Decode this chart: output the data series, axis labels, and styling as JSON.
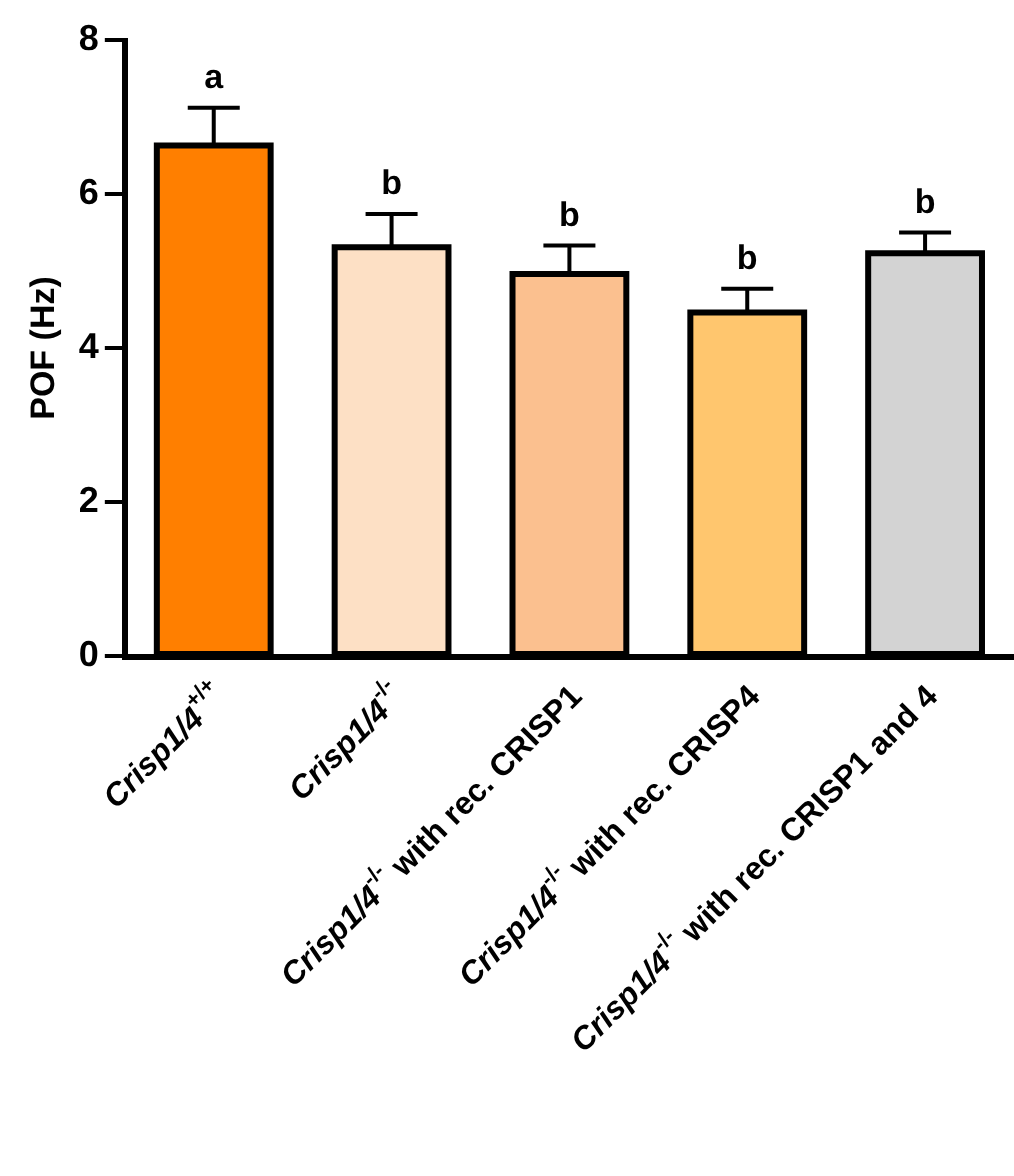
{
  "chart_data": {
    "type": "bar",
    "ylabel": "POF (Hz)",
    "categories": [
      "Crisp1/4$^{+/+}$",
      "Crisp1/4$^{-/-}$",
      "Crisp1/4$^{-/-}$ with rec. CRISP1",
      "Crisp1/4$^{-/-}$ with rec. CRISP4",
      "Crisp1/4$^{-/-}$ with rec. CRISP1 and 4"
    ],
    "values": [
      6.63,
      5.31,
      4.96,
      4.46,
      5.23
    ],
    "colors": [
      "#ff7f00",
      "#fde0c5",
      "#fbc08f",
      "#ffc66e",
      "#d3d3d3"
    ],
    "errors": [
      [
        6.63,
        7.12
      ],
      [
        5.31,
        5.74
      ],
      [
        4.96,
        5.33
      ],
      [
        4.46,
        4.77
      ],
      [
        5.23,
        5.5
      ]
    ],
    "annotations": [
      {
        "text": "a",
        "x": "Crisp1/4$^{+/+}$",
        "y": 7.12
      },
      {
        "text": "b",
        "x": "Crisp1/4$^{-/-}$",
        "y": 5.74
      },
      {
        "text": "b",
        "x": "Crisp1/4$^{-/-}$ with rec. CRISP1",
        "y": 5.33
      },
      {
        "text": "b",
        "x": "Crisp1/4$^{-/-}$ with rec. CRISP4",
        "y": 4.77
      },
      {
        "text": "b",
        "x": "Crisp1/4$^{-/-}$ with rec. CRISP1 and 4",
        "y": 5.5
      }
    ],
    "ylim": [
      0,
      8
    ],
    "yticks": [
      0,
      2,
      4,
      6,
      8
    ],
    "grid": false,
    "legend": false
  }
}
